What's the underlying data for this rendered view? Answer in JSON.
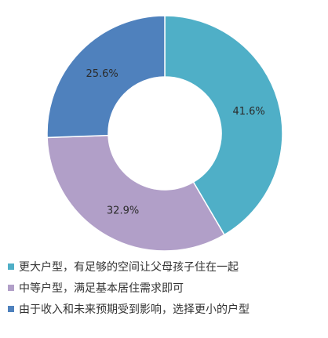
{
  "chart_data": {
    "type": "pie",
    "variant": "donut",
    "title": "",
    "categories": [
      "更大户型，有足够的空间让父母孩子住在一起",
      "中等户型，满足基本居住需求即可",
      "由于收入和未来预期受到影响，选择更小的户型"
    ],
    "values": [
      41.6,
      32.9,
      25.6
    ],
    "labels": [
      "41.6%",
      "32.9%",
      "25.6%"
    ],
    "colors": [
      "#4FAFC7",
      "#B19FC8",
      "#4F81BD"
    ],
    "legend_position": "bottom",
    "start_angle": "12 o'clock, clockwise"
  }
}
